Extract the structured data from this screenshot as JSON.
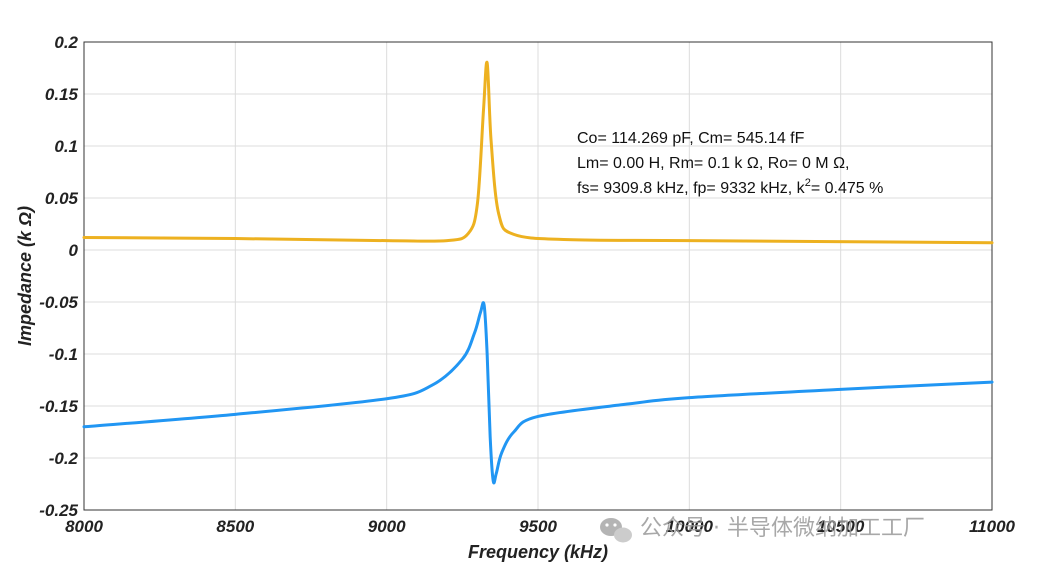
{
  "chart_data": {
    "type": "line",
    "xlabel": "Frequency (kHz)",
    "ylabel": "Impedance (k Ω)",
    "xlim": [
      8000,
      11000
    ],
    "ylim": [
      -0.25,
      0.2
    ],
    "grid": true,
    "x_ticks": [
      "8000",
      "8500",
      "9000",
      "9500",
      "10000",
      "10500",
      "11000"
    ],
    "y_ticks": [
      "0.2",
      "0.15",
      "0.1",
      "0.05",
      "0",
      "-0.05",
      "-0.1",
      "-0.15",
      "-0.2",
      "-0.25"
    ],
    "series": [
      {
        "color": "#EDB120",
        "x": [
          8000,
          8500,
          9000,
          9200,
          9270,
          9300,
          9320,
          9332,
          9345,
          9370,
          9420,
          9600,
          10000,
          11000
        ],
        "values": [
          0.012,
          0.011,
          0.009,
          0.009,
          0.016,
          0.045,
          0.135,
          0.18,
          0.105,
          0.035,
          0.015,
          0.01,
          0.009,
          0.007
        ]
      },
      {
        "color": "#2196F3",
        "x": [
          8000,
          8500,
          9000,
          9150,
          9250,
          9290,
          9310,
          9322,
          9332,
          9342,
          9352,
          9362,
          9380,
          9420,
          9500,
          9800,
          10000,
          10500,
          11000
        ],
        "values": [
          -0.17,
          -0.158,
          -0.143,
          -0.13,
          -0.105,
          -0.08,
          -0.06,
          -0.053,
          -0.1,
          -0.18,
          -0.222,
          -0.215,
          -0.195,
          -0.175,
          -0.16,
          -0.148,
          -0.142,
          -0.134,
          -0.127
        ]
      }
    ],
    "annotation": {
      "line1": "Co= 114.269 pF, Cm= 545.14 fF",
      "line2": "Lm= 0.00 H, Rm= 0.1 k Ω, Ro= 0 M Ω,",
      "line3_pre": "fs= 9309.8 kHz, fp= 9332 kHz, k",
      "line3_sup": "2",
      "line3_post": "= 0.475 %"
    }
  },
  "watermark": {
    "icon": "wechat-icon",
    "text": "公众号 · 半导体微纳加工工厂"
  }
}
